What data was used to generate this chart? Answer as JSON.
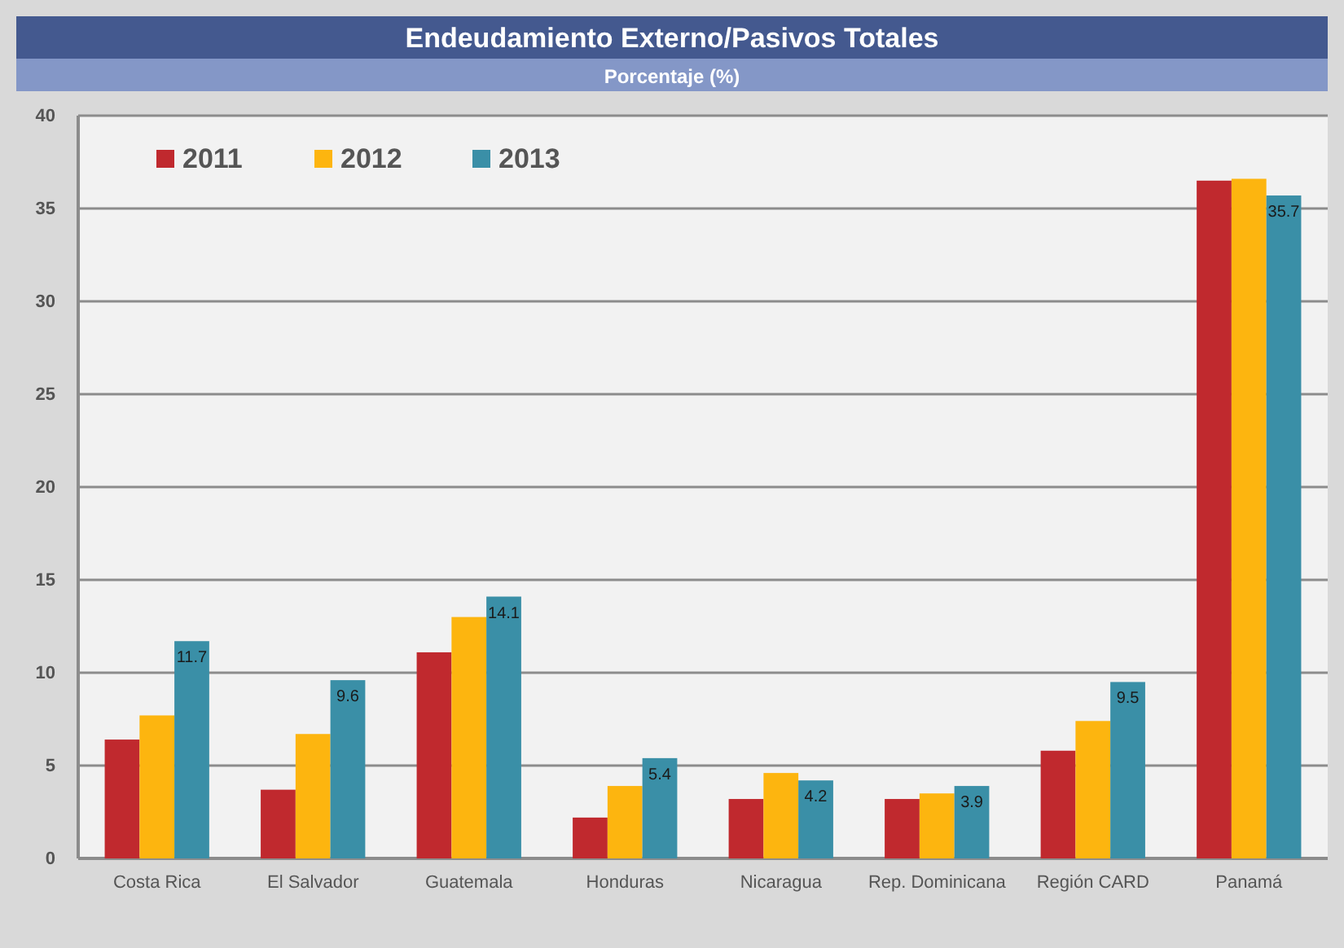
{
  "chart_data": {
    "type": "bar",
    "title": "Endeudamiento Externo/Pasivos Totales",
    "subtitle": "Porcentaje (%)",
    "categories": [
      "Costa Rica",
      "El Salvador",
      "Guatemala",
      "Honduras",
      "Nicaragua",
      "Rep. Dominicana",
      "Región CARD",
      "Panamá"
    ],
    "series": [
      {
        "name": "2011",
        "color": "#c0292e",
        "values": [
          6.4,
          3.7,
          11.1,
          2.2,
          3.2,
          3.2,
          5.8,
          36.5
        ]
      },
      {
        "name": "2012",
        "color": "#fdb50f",
        "values": [
          7.7,
          6.7,
          13.0,
          3.9,
          4.6,
          3.5,
          7.4,
          36.6
        ]
      },
      {
        "name": "2013",
        "color": "#3a8fa7",
        "values": [
          11.7,
          9.6,
          14.1,
          5.4,
          4.2,
          3.9,
          9.5,
          35.7
        ],
        "value_labels": [
          "11.7",
          "9.6",
          "14.1",
          "5.4",
          "4.2",
          "3.9",
          "9.5",
          "35.7"
        ]
      }
    ],
    "ylim": [
      0,
      40
    ],
    "yticks": [
      0,
      5,
      10,
      15,
      20,
      25,
      30,
      35,
      40
    ],
    "grid": "y",
    "legend": "top left"
  }
}
